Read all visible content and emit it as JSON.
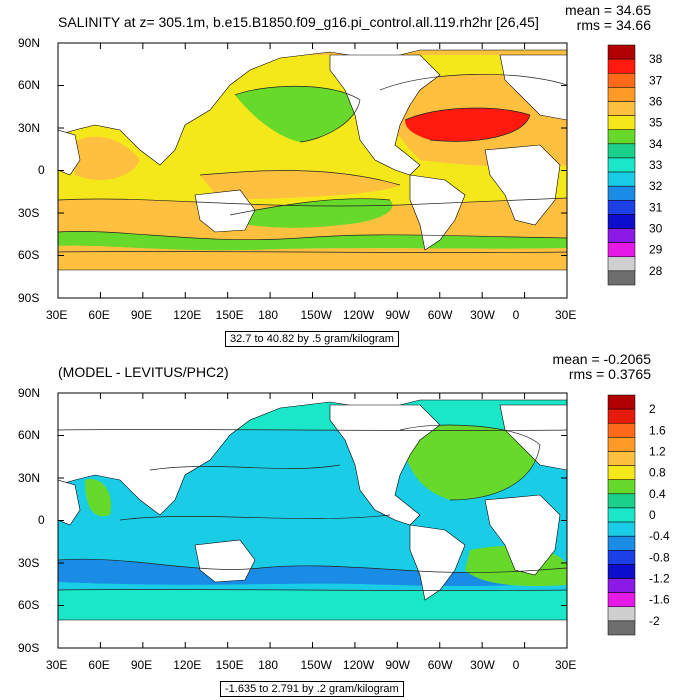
{
  "panels": [
    {
      "title": "SALINITY at z= 305.1m, b.e15.B1850.f09_g16.pi_control.all.119.rh2hr [26,45]",
      "mean": "mean = 34.65",
      "rms": "rms = 34.66",
      "range": "32.7 to 40.82 by .5 gram/kilogram",
      "colorbar": {
        "labels": [
          "38",
          "37",
          "36",
          "35",
          "34",
          "33",
          "32",
          "31",
          "30",
          "29",
          "28"
        ],
        "colors": [
          "#b20000",
          "#ff1a0d",
          "#ff6a1a",
          "#ff9a26",
          "#ffc040",
          "#f5e81a",
          "#66d92a",
          "#1ad08a",
          "#1ae6c8",
          "#1acde6",
          "#1a8ce6",
          "#1a40e6",
          "#0d0dcc",
          "#8c1ae6",
          "#e61ae6",
          "#cfcfcf",
          "#6e6e6e"
        ]
      }
    },
    {
      "title": "(MODEL - LEVITUS/PHC2)",
      "mean": "mean = -0.2065",
      "rms": "rms = 0.3765",
      "range": "-1.635 to 2.791 by .2 gram/kilogram",
      "colorbar": {
        "labels": [
          "2",
          "1.6",
          "1.2",
          "0.8",
          "0.4",
          "0",
          "-0.4",
          "-0.8",
          "-1.2",
          "-1.6",
          "-2"
        ],
        "colors": [
          "#b20000",
          "#e61a0d",
          "#ff6a1a",
          "#ff9a26",
          "#ffc040",
          "#f5e81a",
          "#66d92a",
          "#1ad08a",
          "#1ae6c8",
          "#1acde6",
          "#1a8ce6",
          "#1a40e6",
          "#0d0dcc",
          "#8c1ae6",
          "#e61ae6",
          "#cfcfcf",
          "#6e6e6e"
        ]
      }
    }
  ],
  "axes": {
    "lat_labels": [
      "90N",
      "60N",
      "30N",
      "0",
      "30S",
      "60S",
      "90S"
    ],
    "lon_labels": [
      "30E",
      "60E",
      "90E",
      "120E",
      "150E",
      "180",
      "150W",
      "120W",
      "90W",
      "60W",
      "30W",
      "0",
      "30E"
    ]
  },
  "colors": {
    "land": "#ffffff",
    "panel1_base": "#f5e81a",
    "panel1_orange": "#ffc040",
    "panel1_green": "#66d92a",
    "panel1_red": "#ff1a0d",
    "panel2_base": "#1ae6c8",
    "panel2_cyan": "#1acde6",
    "panel2_blue": "#1a8ce6",
    "panel2_green": "#66d92a"
  }
}
